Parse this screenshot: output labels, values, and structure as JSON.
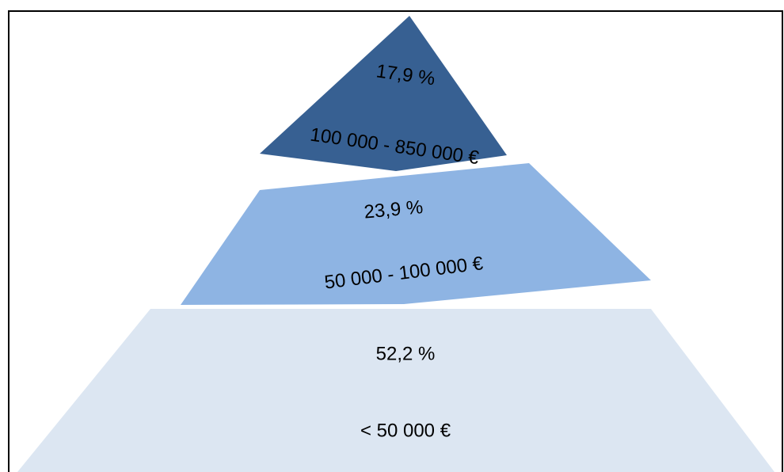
{
  "chart_data": {
    "type": "pyramid",
    "categories": [
      "100 000 - 850 000 €",
      "50 000 - 100 000 €",
      "< 50 000 €"
    ],
    "values": [
      17.9,
      23.9,
      52.2
    ],
    "value_labels": [
      "17,9 %",
      "23,9 %",
      "52,2 %"
    ],
    "colors": [
      "#376092",
      "#8eb4e3",
      "#dce6f2"
    ]
  }
}
